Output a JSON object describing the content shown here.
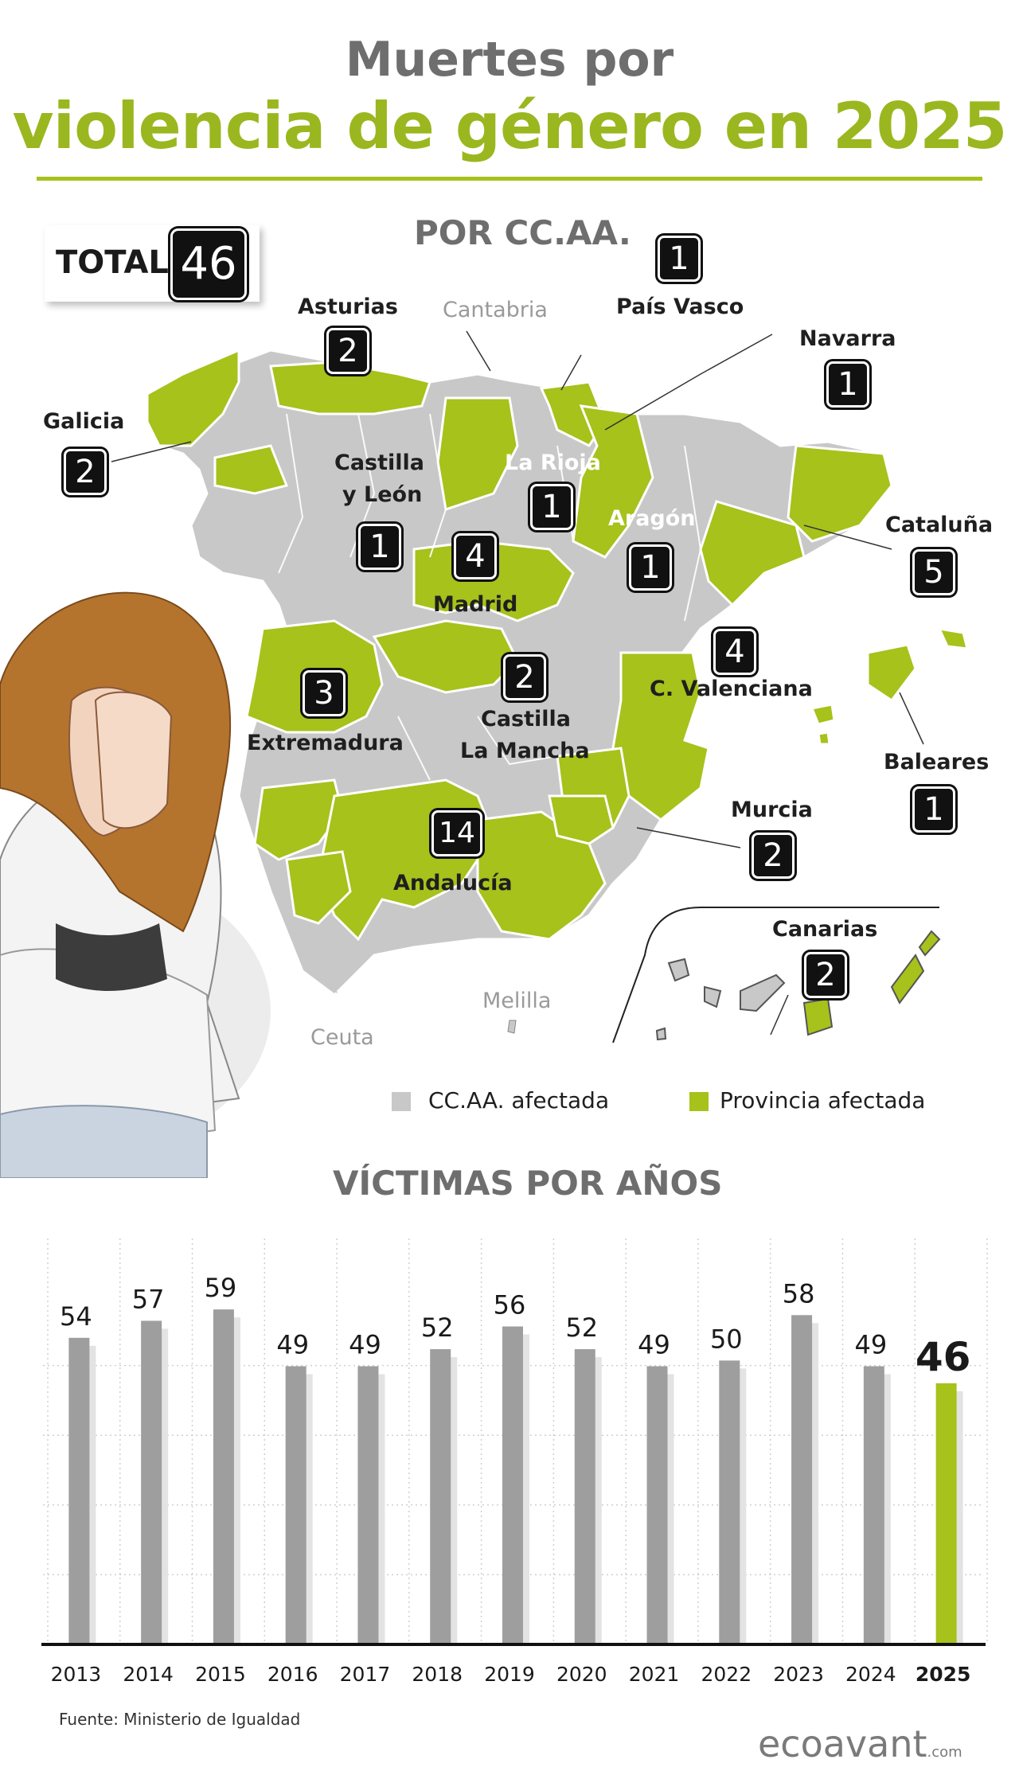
{
  "title": {
    "line1": "Muertes por",
    "line2": "violencia de género en 2025"
  },
  "total": {
    "label": "TOTAL",
    "value": "46"
  },
  "map": {
    "heading": "POR CC.AA.",
    "regions": [
      {
        "name": "Asturias",
        "count": "2"
      },
      {
        "name": "País Vasco",
        "count": "1"
      },
      {
        "name": "Navarra",
        "count": "1"
      },
      {
        "name": "Galicia",
        "count": "2"
      },
      {
        "name_line1": "Castilla",
        "name_line2": "y León",
        "count": "1"
      },
      {
        "name": "La Rioja",
        "count": "1"
      },
      {
        "name": "Aragón",
        "count": "1"
      },
      {
        "name": "Cataluña",
        "count": "5"
      },
      {
        "name": "Madrid",
        "count": "4"
      },
      {
        "name": "C. Valenciana",
        "count": "4"
      },
      {
        "name": "Extremadura",
        "count": "3"
      },
      {
        "name_line1": "Castilla",
        "name_line2": "La Mancha",
        "count": "2"
      },
      {
        "name": "Baleares",
        "count": "1"
      },
      {
        "name": "Murcia",
        "count": "2"
      },
      {
        "name": "Andalucía",
        "count": "14"
      },
      {
        "name": "Canarias",
        "count": "2"
      }
    ],
    "unaffected_labels": {
      "cantabria": "Cantabria",
      "melilla": "Melilla",
      "ceuta": "Ceuta"
    },
    "legend": [
      {
        "label": "CC.AA. afectada",
        "color": "#c8c8c8"
      },
      {
        "label": "Provincia afectada",
        "color": "#a6c21b"
      }
    ],
    "colors": {
      "region": "#c8c8c8",
      "province": "#a6c21b"
    }
  },
  "chart_data": {
    "type": "bar",
    "title": "VÍCTIMAS POR AÑOS",
    "categories": [
      "2013",
      "2014",
      "2015",
      "2016",
      "2017",
      "2018",
      "2019",
      "2020",
      "2021",
      "2022",
      "2023",
      "2024",
      "2025"
    ],
    "values": [
      54,
      57,
      59,
      49,
      49,
      52,
      56,
      52,
      49,
      50,
      58,
      49,
      46
    ],
    "highlight": "2025",
    "colors": {
      "bar": "#9e9e9e",
      "highlight": "#a6c21b"
    }
  },
  "footer": {
    "source": "Fuente: Ministerio de Igualdad",
    "brand": "ecoavant",
    "brand_suffix": ".com"
  }
}
